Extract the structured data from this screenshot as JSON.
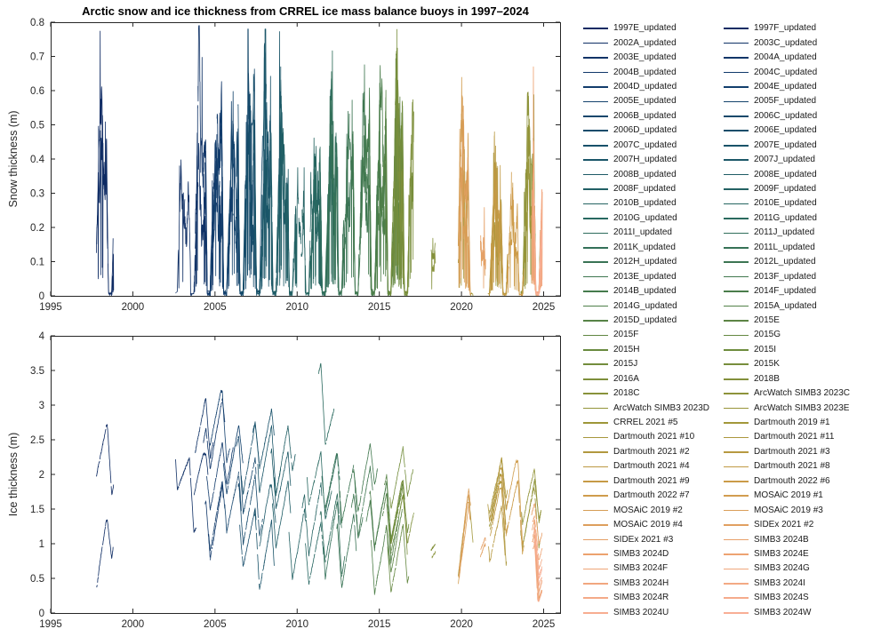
{
  "figure": {
    "title": "Arctic snow and ice thickness from CRREL ice mass balance buoys in 1997–2024",
    "background": "#ffffff",
    "axis_color": "#262626",
    "colormap_stops": [
      "#0E2A63",
      "#123F6D",
      "#1A5669",
      "#2A6A5F",
      "#457B4D",
      "#6E8C3D",
      "#9D9638",
      "#CB9B48",
      "#ECA26E",
      "#F8AE95"
    ]
  },
  "chart_data": [
    {
      "type": "line",
      "panel": "snow",
      "ylabel": "Snow thickness (m)",
      "xlim": [
        1995,
        2026
      ],
      "ylim": [
        0,
        0.8
      ],
      "xticks": [
        "1995",
        "2000",
        "2005",
        "2010",
        "2015",
        "2020",
        "2025"
      ],
      "yticks": [
        "0",
        "0.1",
        "0.2",
        "0.3",
        "0.4",
        "0.5",
        "0.6",
        "0.7",
        "0.8"
      ],
      "grid": false,
      "legend_position": "outside-right-two-columns"
    },
    {
      "type": "line",
      "panel": "ice",
      "ylabel": "Ice thickness (m)",
      "xlim": [
        1995,
        2026
      ],
      "ylim": [
        0,
        4
      ],
      "xticks": [
        "1995",
        "2000",
        "2005",
        "2010",
        "2015",
        "2020",
        "2025"
      ],
      "yticks": [
        "0",
        "0.5",
        "1",
        "1.5",
        "2",
        "2.5",
        "3",
        "3.5",
        "4"
      ],
      "grid": false,
      "legend_position": "outside-right-two-columns"
    }
  ],
  "legend": {
    "columns": 2,
    "fill_order": "row-major"
  },
  "series_columns": [
    "label",
    "start_decimal_year",
    "duration_years",
    "snow_max_m",
    "ice_initial_m",
    "ice_max_m"
  ],
  "series": [
    [
      "1997E_updated",
      1997.78,
      1.05,
      0.5,
      1.95,
      2.72
    ],
    [
      "1997F_updated",
      1997.8,
      1.0,
      0.42,
      0.35,
      1.35
    ],
    [
      "2002A_updated",
      2002.6,
      1.25,
      0.45,
      2.25,
      2.62
    ],
    [
      "2003C_updated",
      2003.72,
      0.85,
      0.35,
      1.7,
      2.3
    ],
    [
      "2003E_updated",
      2003.8,
      1.1,
      0.62,
      2.3,
      3.1
    ],
    [
      "2004A_updated",
      2004.3,
      1.3,
      0.55,
      2.45,
      3.3
    ],
    [
      "2004B_updated",
      2004.4,
      1.1,
      0.45,
      1.55,
      2.4
    ],
    [
      "2004C_updated",
      2004.5,
      1.6,
      0.5,
      2.0,
      2.8
    ],
    [
      "2004D_updated",
      2004.6,
      1.0,
      0.35,
      1.2,
      2.0
    ],
    [
      "2004E_updated",
      2004.7,
      1.2,
      0.5,
      2.5,
      3.2
    ],
    [
      "2005E_updated",
      2005.5,
      1.2,
      0.45,
      2.2,
      3.0
    ],
    [
      "2005F_updated",
      2005.6,
      1.0,
      0.38,
      1.6,
      2.3
    ],
    [
      "2006B_updated",
      2006.3,
      1.2,
      0.5,
      2.4,
      3.05
    ],
    [
      "2006C_updated",
      2006.4,
      1.5,
      0.6,
      1.8,
      2.6
    ],
    [
      "2006D_updated",
      2006.5,
      1.0,
      0.4,
      1.3,
      2.0
    ],
    [
      "2006E_updated",
      2006.6,
      1.1,
      0.46,
      2.0,
      2.8
    ],
    [
      "2007C_updated",
      2007.3,
      1.3,
      0.55,
      2.6,
      3.3
    ],
    [
      "2007E_updated",
      2007.4,
      1.2,
      0.5,
      1.4,
      2.2
    ],
    [
      "2007H_updated",
      2007.6,
      1.4,
      0.6,
      2.2,
      3.0
    ],
    [
      "2007J_updated",
      2007.7,
      1.0,
      0.4,
      1.0,
      1.85
    ],
    [
      "2008B_updated",
      2008.4,
      1.2,
      0.5,
      2.3,
      3.0
    ],
    [
      "2008E_updated",
      2008.5,
      1.1,
      0.45,
      1.6,
      2.4
    ],
    [
      "2008F_updated",
      2008.6,
      1.3,
      0.55,
      2.0,
      2.8
    ],
    [
      "2009F_updated",
      2009.5,
      1.0,
      0.36,
      1.2,
      2.0
    ],
    [
      "2010B_updated",
      2010.3,
      1.2,
      0.46,
      1.5,
      2.3
    ],
    [
      "2010E_updated",
      2010.5,
      1.1,
      0.4,
      1.05,
      1.8
    ],
    [
      "2010G_updated",
      2010.6,
      1.5,
      0.5,
      2.0,
      2.6
    ],
    [
      "2011G_updated",
      2011.3,
      0.95,
      0.45,
      3.45,
      4.05
    ],
    [
      "2011I_updated",
      2011.4,
      1.2,
      0.5,
      1.4,
      2.2
    ],
    [
      "2011J_updated",
      2011.5,
      1.1,
      0.46,
      2.0,
      2.7
    ],
    [
      "2011K_updated",
      2011.6,
      1.3,
      0.55,
      1.0,
      1.9
    ],
    [
      "2011L_updated",
      2011.7,
      1.0,
      0.4,
      1.6,
      2.3
    ],
    [
      "2012H_updated",
      2012.4,
      1.2,
      0.46,
      1.2,
      2.1
    ],
    [
      "2012L_updated",
      2012.6,
      1.4,
      0.55,
      1.8,
      2.5
    ],
    [
      "2013E_updated",
      2013.3,
      1.3,
      0.58,
      1.5,
      2.3
    ],
    [
      "2013F_updated",
      2013.4,
      1.5,
      0.64,
      2.0,
      2.8
    ],
    [
      "2014B_updated",
      2014.2,
      1.2,
      0.55,
      1.3,
      2.1
    ],
    [
      "2014F_updated",
      2014.4,
      1.3,
      0.6,
      1.7,
      2.5
    ],
    [
      "2014G_updated",
      2014.5,
      1.1,
      0.5,
      1.1,
      1.9
    ],
    [
      "2015A_updated",
      2015.2,
      1.0,
      0.46,
      1.4,
      2.2
    ],
    [
      "2015D_updated",
      2015.3,
      1.2,
      0.55,
      1.8,
      2.5
    ],
    [
      "2015E",
      2015.4,
      1.0,
      0.5,
      1.2,
      2.0
    ],
    [
      "2015F",
      2015.45,
      1.1,
      0.45,
      1.6,
      2.3
    ],
    [
      "2015G",
      2015.5,
      1.3,
      0.55,
      1.0,
      1.8
    ],
    [
      "2015H",
      2015.55,
      1.0,
      0.4,
      1.5,
      2.2
    ],
    [
      "2015I",
      2015.6,
      1.2,
      0.5,
      1.3,
      2.0
    ],
    [
      "2015J",
      2015.65,
      1.4,
      0.55,
      1.7,
      2.4
    ],
    [
      "2015K",
      2015.7,
      1.0,
      0.45,
      1.1,
      1.9
    ],
    [
      "2016A",
      2016.2,
      0.9,
      0.5,
      1.4,
      2.1
    ],
    [
      "2018B",
      2018.15,
      0.25,
      0.14,
      0.9,
      1.1
    ],
    [
      "2018C",
      2018.2,
      0.22,
      0.13,
      0.8,
      1.0
    ],
    [
      "ArcWatch SIMB3 2023C",
      2023.6,
      1.2,
      0.46,
      1.2,
      2.0
    ],
    [
      "ArcWatch SIMB3 2023D",
      2023.65,
      1.2,
      0.55,
      1.5,
      2.2
    ],
    [
      "ArcWatch SIMB3 2023E",
      2023.7,
      1.1,
      0.5,
      1.0,
      1.8
    ],
    [
      "CRREL 2021 #5",
      2021.7,
      1.0,
      0.35,
      1.3,
      2.0
    ],
    [
      "Dartmouth 2019 #1",
      2019.8,
      0.9,
      0.3,
      0.5,
      1.7
    ],
    [
      "Dartmouth 2021 #10",
      2021.7,
      1.1,
      0.3,
      1.5,
      2.2
    ],
    [
      "Dartmouth 2021 #11",
      2021.75,
      1.0,
      0.28,
      1.2,
      1.9
    ],
    [
      "Dartmouth 2021 #2",
      2021.6,
      1.2,
      0.32,
      1.6,
      2.3
    ],
    [
      "Dartmouth 2021 #3",
      2021.65,
      1.0,
      0.26,
      1.0,
      1.7
    ],
    [
      "Dartmouth 2021 #4",
      2021.7,
      1.1,
      0.3,
      1.4,
      2.1
    ],
    [
      "Dartmouth 2021 #8",
      2021.75,
      0.9,
      0.27,
      1.1,
      1.8
    ],
    [
      "Dartmouth 2021 #9",
      2021.8,
      1.0,
      0.3,
      1.3,
      2.0
    ],
    [
      "Dartmouth 2022 #6",
      2022.7,
      1.1,
      0.3,
      1.2,
      1.9
    ],
    [
      "Dartmouth 2022 #7",
      2022.75,
      1.0,
      0.32,
      1.5,
      2.2
    ],
    [
      "MOSAiC 2019 #1",
      2019.8,
      0.75,
      0.5,
      0.4,
      1.6
    ],
    [
      "MOSAiC 2019 #2",
      2019.82,
      0.72,
      0.45,
      0.5,
      1.7
    ],
    [
      "MOSAiC 2019 #3",
      2019.85,
      0.7,
      0.4,
      0.6,
      1.8
    ],
    [
      "MOSAiC 2019 #4",
      2019.87,
      0.65,
      0.36,
      0.5,
      1.6
    ],
    [
      "SIDEx 2021 #2",
      2021.15,
      0.3,
      0.2,
      0.8,
      1.2
    ],
    [
      "SIDEx 2021 #3",
      2021.17,
      0.3,
      0.22,
      0.9,
      1.3
    ],
    [
      "SIMB3 2024B",
      2024.25,
      0.65,
      0.35,
      1.4,
      1.9
    ],
    [
      "SIMB3 2024D",
      2024.3,
      0.6,
      0.4,
      1.2,
      1.7
    ],
    [
      "SIMB3 2024E",
      2024.3,
      0.6,
      0.46,
      1.0,
      1.5
    ],
    [
      "SIMB3 2024F",
      2024.32,
      0.6,
      0.5,
      1.3,
      1.8
    ],
    [
      "SIMB3 2024G",
      2024.35,
      0.55,
      0.4,
      0.9,
      1.4
    ],
    [
      "SIMB3 2024H",
      2024.35,
      0.55,
      0.35,
      1.1,
      1.6
    ],
    [
      "SIMB3 2024I",
      2024.4,
      0.5,
      0.46,
      1.2,
      1.6
    ],
    [
      "SIMB3 2024R",
      2024.4,
      0.5,
      0.4,
      1.0,
      1.4
    ],
    [
      "SIMB3 2024S",
      2024.45,
      0.45,
      0.35,
      1.3,
      1.7
    ],
    [
      "SIMB3 2024U",
      2024.45,
      0.45,
      0.3,
      1.1,
      1.5
    ],
    [
      "SIMB3 2024W",
      2024.5,
      0.4,
      0.38,
      1.2,
      1.6
    ]
  ]
}
